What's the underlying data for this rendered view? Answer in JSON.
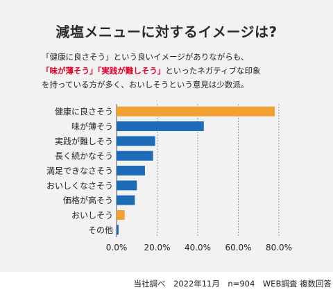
{
  "title": "減塩メニューに対するイメージは?",
  "description": {
    "line1": "「健康に良さそう」という良いイメージがありながらも、",
    "line2_red": "「味が薄そう」「実践が難しそう」",
    "line2_rest": "といったネガティブな印象",
    "line3": "を持っている方が多く、おいしそうという意見は少数派。"
  },
  "footer": "当社調べ　2022年11月　n=904　WEB調査 複数回答",
  "colors": {
    "highlight": "#f3a033",
    "normal": "#1e6bb8",
    "grid": "#9a9a9a",
    "accent_text": "#e0002a"
  },
  "chart_data": {
    "type": "bar",
    "orientation": "horizontal",
    "categories": [
      "健康に良さそう",
      "味が薄そう",
      "実践が難しそう",
      "長く続かなそう",
      "満足できなさそう",
      "おいしくなさそう",
      "価格が高そう",
      "おいしそう",
      "その他"
    ],
    "values": [
      78,
      43,
      19,
      18,
      14,
      10,
      9,
      4,
      1
    ],
    "highlighted": [
      true,
      false,
      false,
      false,
      false,
      false,
      false,
      true,
      false
    ],
    "xlim": [
      0,
      80
    ],
    "ticks": [
      0,
      20,
      40,
      60,
      80
    ],
    "tick_labels": [
      "0.0%",
      "20.0%",
      "40.0%",
      "60.0%",
      "80.0%"
    ],
    "grid": true,
    "title": "",
    "xlabel": "",
    "ylabel": ""
  }
}
